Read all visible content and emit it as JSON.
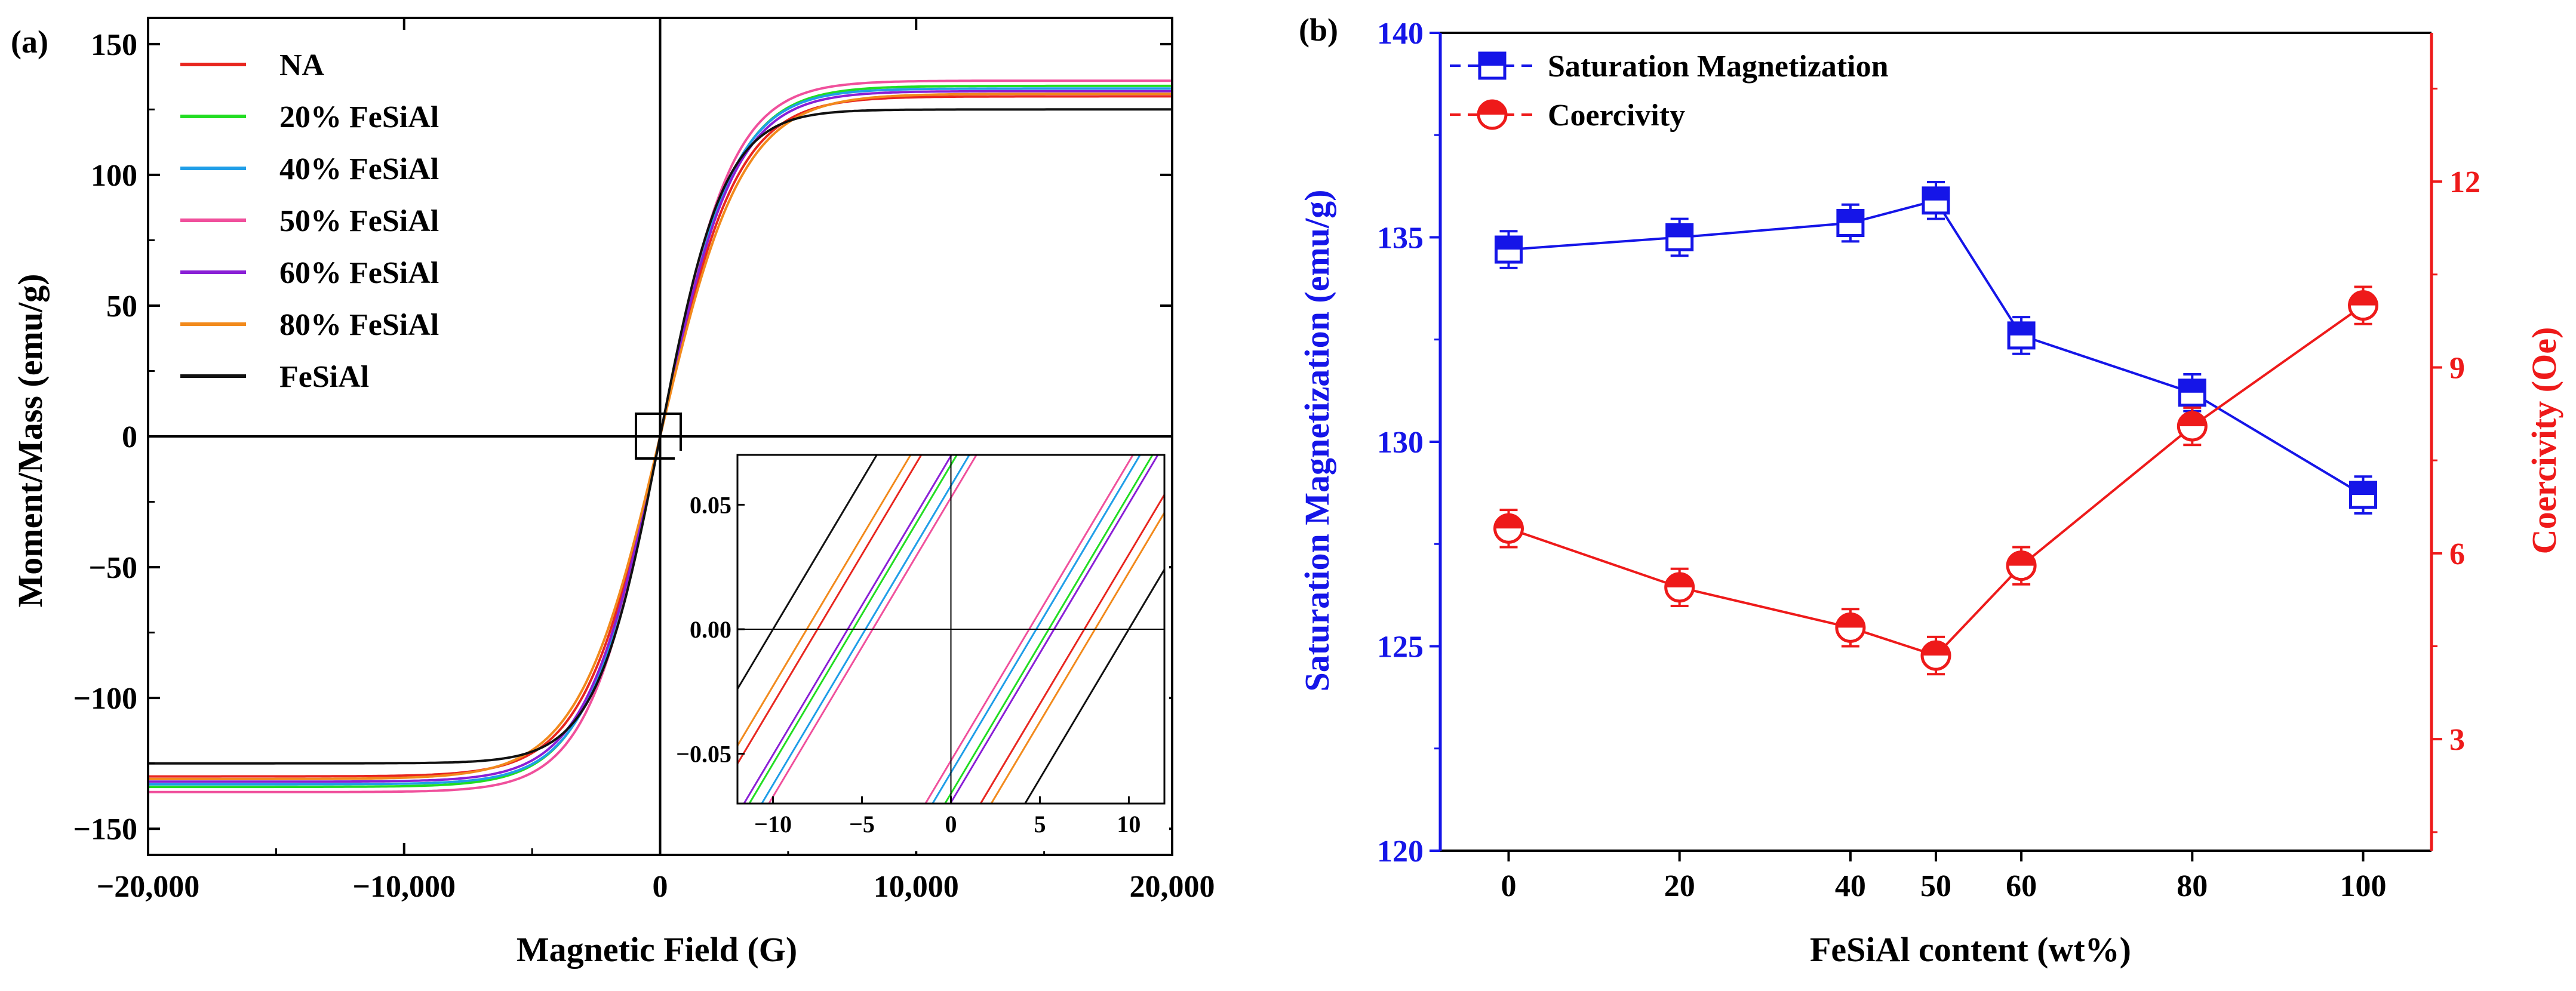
{
  "chart_data": [
    {
      "type": "line",
      "panel_label": "(a)",
      "xlabel": "Magnetic Field (G)",
      "ylabel": "Moment/Mass (emu/g)",
      "xlim": [
        -20000,
        20000
      ],
      "ylim": [
        -160,
        160
      ],
      "xticks": [
        -20000,
        -10000,
        0,
        10000,
        20000
      ],
      "xtick_labels": [
        "−20,000",
        "−10,000",
        "0",
        "10,000",
        "20,000"
      ],
      "yticks": [
        -150,
        -100,
        -50,
        0,
        50,
        100,
        150
      ],
      "ytick_labels": [
        "−150",
        "−100",
        "−50",
        "0",
        "50",
        "100",
        "150"
      ],
      "legend_position": "top-left",
      "series": [
        {
          "name": "NA",
          "color": "#e8261f",
          "ms": 130,
          "hc": 7.5,
          "h0": 3000
        },
        {
          "name": "20% FeSiAl",
          "color": "#22dd22",
          "ms": 134,
          "hc": 5.5,
          "h0": 2900
        },
        {
          "name": "40% FeSiAl",
          "color": "#1f9ee8",
          "ms": 133,
          "hc": 4.8,
          "h0": 2850
        },
        {
          "name": "50% FeSiAl",
          "color": "#f0509c",
          "ms": 136,
          "hc": 4.4,
          "h0": 2800
        },
        {
          "name": "60% FeSiAl",
          "color": "#8a1fd6",
          "ms": 132,
          "hc": 5.8,
          "h0": 2900
        },
        {
          "name": "80% FeSiAl",
          "color": "#f28a1c",
          "ms": 131,
          "hc": 8.1,
          "h0": 3200
        },
        {
          "name": "FeSiAl",
          "color": "#111111",
          "ms": 125,
          "hc": 10.0,
          "h0": 2500
        }
      ],
      "inset": {
        "xlim": [
          -12,
          12
        ],
        "ylim": [
          -0.07,
          0.07
        ],
        "xticks": [
          -10,
          -5,
          0,
          5,
          10
        ],
        "xtick_labels": [
          "−10",
          "−5",
          "0",
          "5",
          "10"
        ],
        "yticks": [
          -0.05,
          0.0,
          0.05
        ],
        "ytick_labels": [
          "−0.05",
          "0.00",
          "0.05"
        ]
      }
    },
    {
      "type": "line",
      "panel_label": "(b)",
      "xlabel": "FeSiAl content (wt%)",
      "ylabel": "Saturation Magnetization (emu/g)",
      "y2label": "Coercivity (Oe)",
      "x": [
        0,
        20,
        40,
        50,
        60,
        80,
        100
      ],
      "xlim": [
        -8,
        108
      ],
      "ylim": [
        120,
        140
      ],
      "y2lim": [
        1.2,
        14.4
      ],
      "xticks": [
        0,
        20,
        40,
        50,
        60,
        80,
        100
      ],
      "xtick_labels": [
        "0",
        "20",
        "40",
        "50",
        "60",
        "80",
        "100"
      ],
      "yticks": [
        120,
        125,
        130,
        135,
        140
      ],
      "ytick_labels": [
        "120",
        "125",
        "130",
        "135",
        "140"
      ],
      "y2ticks": [
        3,
        6,
        9,
        12
      ],
      "y2tick_labels": [
        "3",
        "6",
        "9",
        "12"
      ],
      "legend_position": "top-left",
      "series": [
        {
          "name": "Saturation Magnetization",
          "axis": "left",
          "color": "#1515e8",
          "marker": "half-square",
          "linestyle": "dashed-legend",
          "values": [
            134.7,
            135.0,
            135.35,
            135.9,
            132.6,
            131.2,
            128.7
          ],
          "errors": [
            0.45,
            0.45,
            0.45,
            0.45,
            0.45,
            0.45,
            0.45
          ]
        },
        {
          "name": "Coercivity",
          "axis": "right",
          "color": "#ee1a1a",
          "marker": "half-circle",
          "linestyle": "dashed-legend",
          "values": [
            6.4,
            5.45,
            4.8,
            4.35,
            5.8,
            8.05,
            10.0
          ],
          "errors": [
            0.3,
            0.3,
            0.3,
            0.3,
            0.3,
            0.3,
            0.3
          ]
        }
      ]
    }
  ]
}
